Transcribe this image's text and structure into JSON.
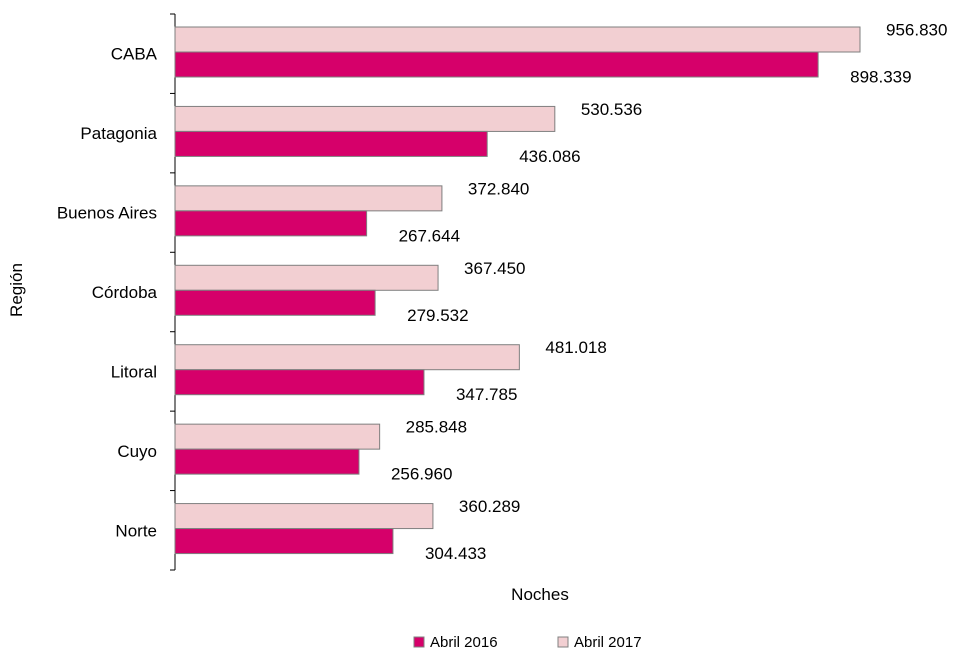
{
  "chart_data": {
    "type": "bar",
    "orientation": "horizontal",
    "title": "",
    "xlabel": "Noches",
    "ylabel": "Región",
    "xlim": [
      0,
      1000000
    ],
    "grid": false,
    "legend_position": "bottom",
    "categories": [
      "CABA",
      "Patagonia",
      "Buenos Aires",
      "Córdoba",
      "Litoral",
      "Cuyo",
      "Norte"
    ],
    "series": [
      {
        "name": "Abril 2017",
        "color": "#f2cfd2",
        "values": [
          956830,
          530536,
          372840,
          367450,
          481018,
          285848,
          360289
        ],
        "labels": [
          "956.830",
          "530.536",
          "372.840",
          "367.450",
          "481.018",
          "285.848",
          "360.289"
        ]
      },
      {
        "name": "Abril 2016",
        "color": "#d6006a",
        "values": [
          898339,
          436086,
          267644,
          279532,
          347785,
          256960,
          304433
        ],
        "labels": [
          "898.339",
          "436.086",
          "267.644",
          "279.532",
          "347.785",
          "256.960",
          "304.433"
        ]
      }
    ],
    "legend": [
      "Abril 2016",
      "Abril 2017"
    ]
  }
}
